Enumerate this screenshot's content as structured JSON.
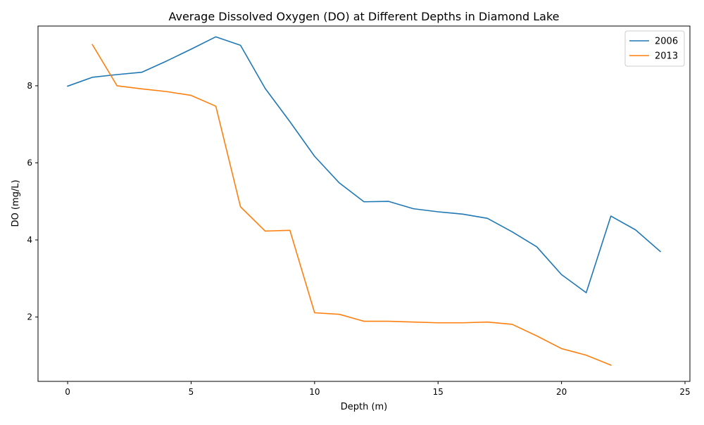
{
  "chart_data": {
    "type": "line",
    "title": "Average Dissolved Oxygen (DO) at Different Depths in Diamond Lake",
    "xlabel": "Depth (m)",
    "ylabel": "DO (mg/L)",
    "xlim": [
      -1.2,
      25.2
    ],
    "ylim": [
      0.33,
      9.55
    ],
    "xticks": [
      0,
      5,
      10,
      15,
      20,
      25
    ],
    "yticks": [
      2,
      4,
      6,
      8
    ],
    "grid": false,
    "legend_position": "top-right",
    "series": [
      {
        "name": "2006",
        "color": "#1f77b4",
        "x": [
          0,
          1,
          2,
          3,
          4,
          5,
          6,
          7,
          8,
          9,
          10,
          11,
          12,
          13,
          14,
          15,
          16,
          17,
          18,
          19,
          20,
          21,
          22,
          23,
          24
        ],
        "y": [
          7.99,
          8.22,
          8.29,
          8.35,
          8.64,
          8.95,
          9.27,
          9.05,
          7.93,
          7.07,
          6.17,
          5.48,
          4.99,
          5.0,
          4.81,
          4.73,
          4.67,
          4.56,
          4.21,
          3.82,
          3.1,
          2.63,
          4.62,
          4.26,
          3.7
        ]
      },
      {
        "name": "2013",
        "color": "#ff7f0e",
        "x": [
          1,
          2,
          3,
          4,
          5,
          6,
          7,
          8,
          9,
          10,
          11,
          12,
          13,
          14,
          15,
          16,
          17,
          18,
          19,
          20,
          21,
          22
        ],
        "y": [
          9.07,
          8.0,
          7.92,
          7.85,
          7.75,
          7.47,
          4.86,
          4.23,
          4.25,
          2.11,
          2.07,
          1.89,
          1.89,
          1.87,
          1.85,
          1.85,
          1.87,
          1.81,
          1.51,
          1.18,
          1.01,
          0.75
        ]
      }
    ]
  }
}
